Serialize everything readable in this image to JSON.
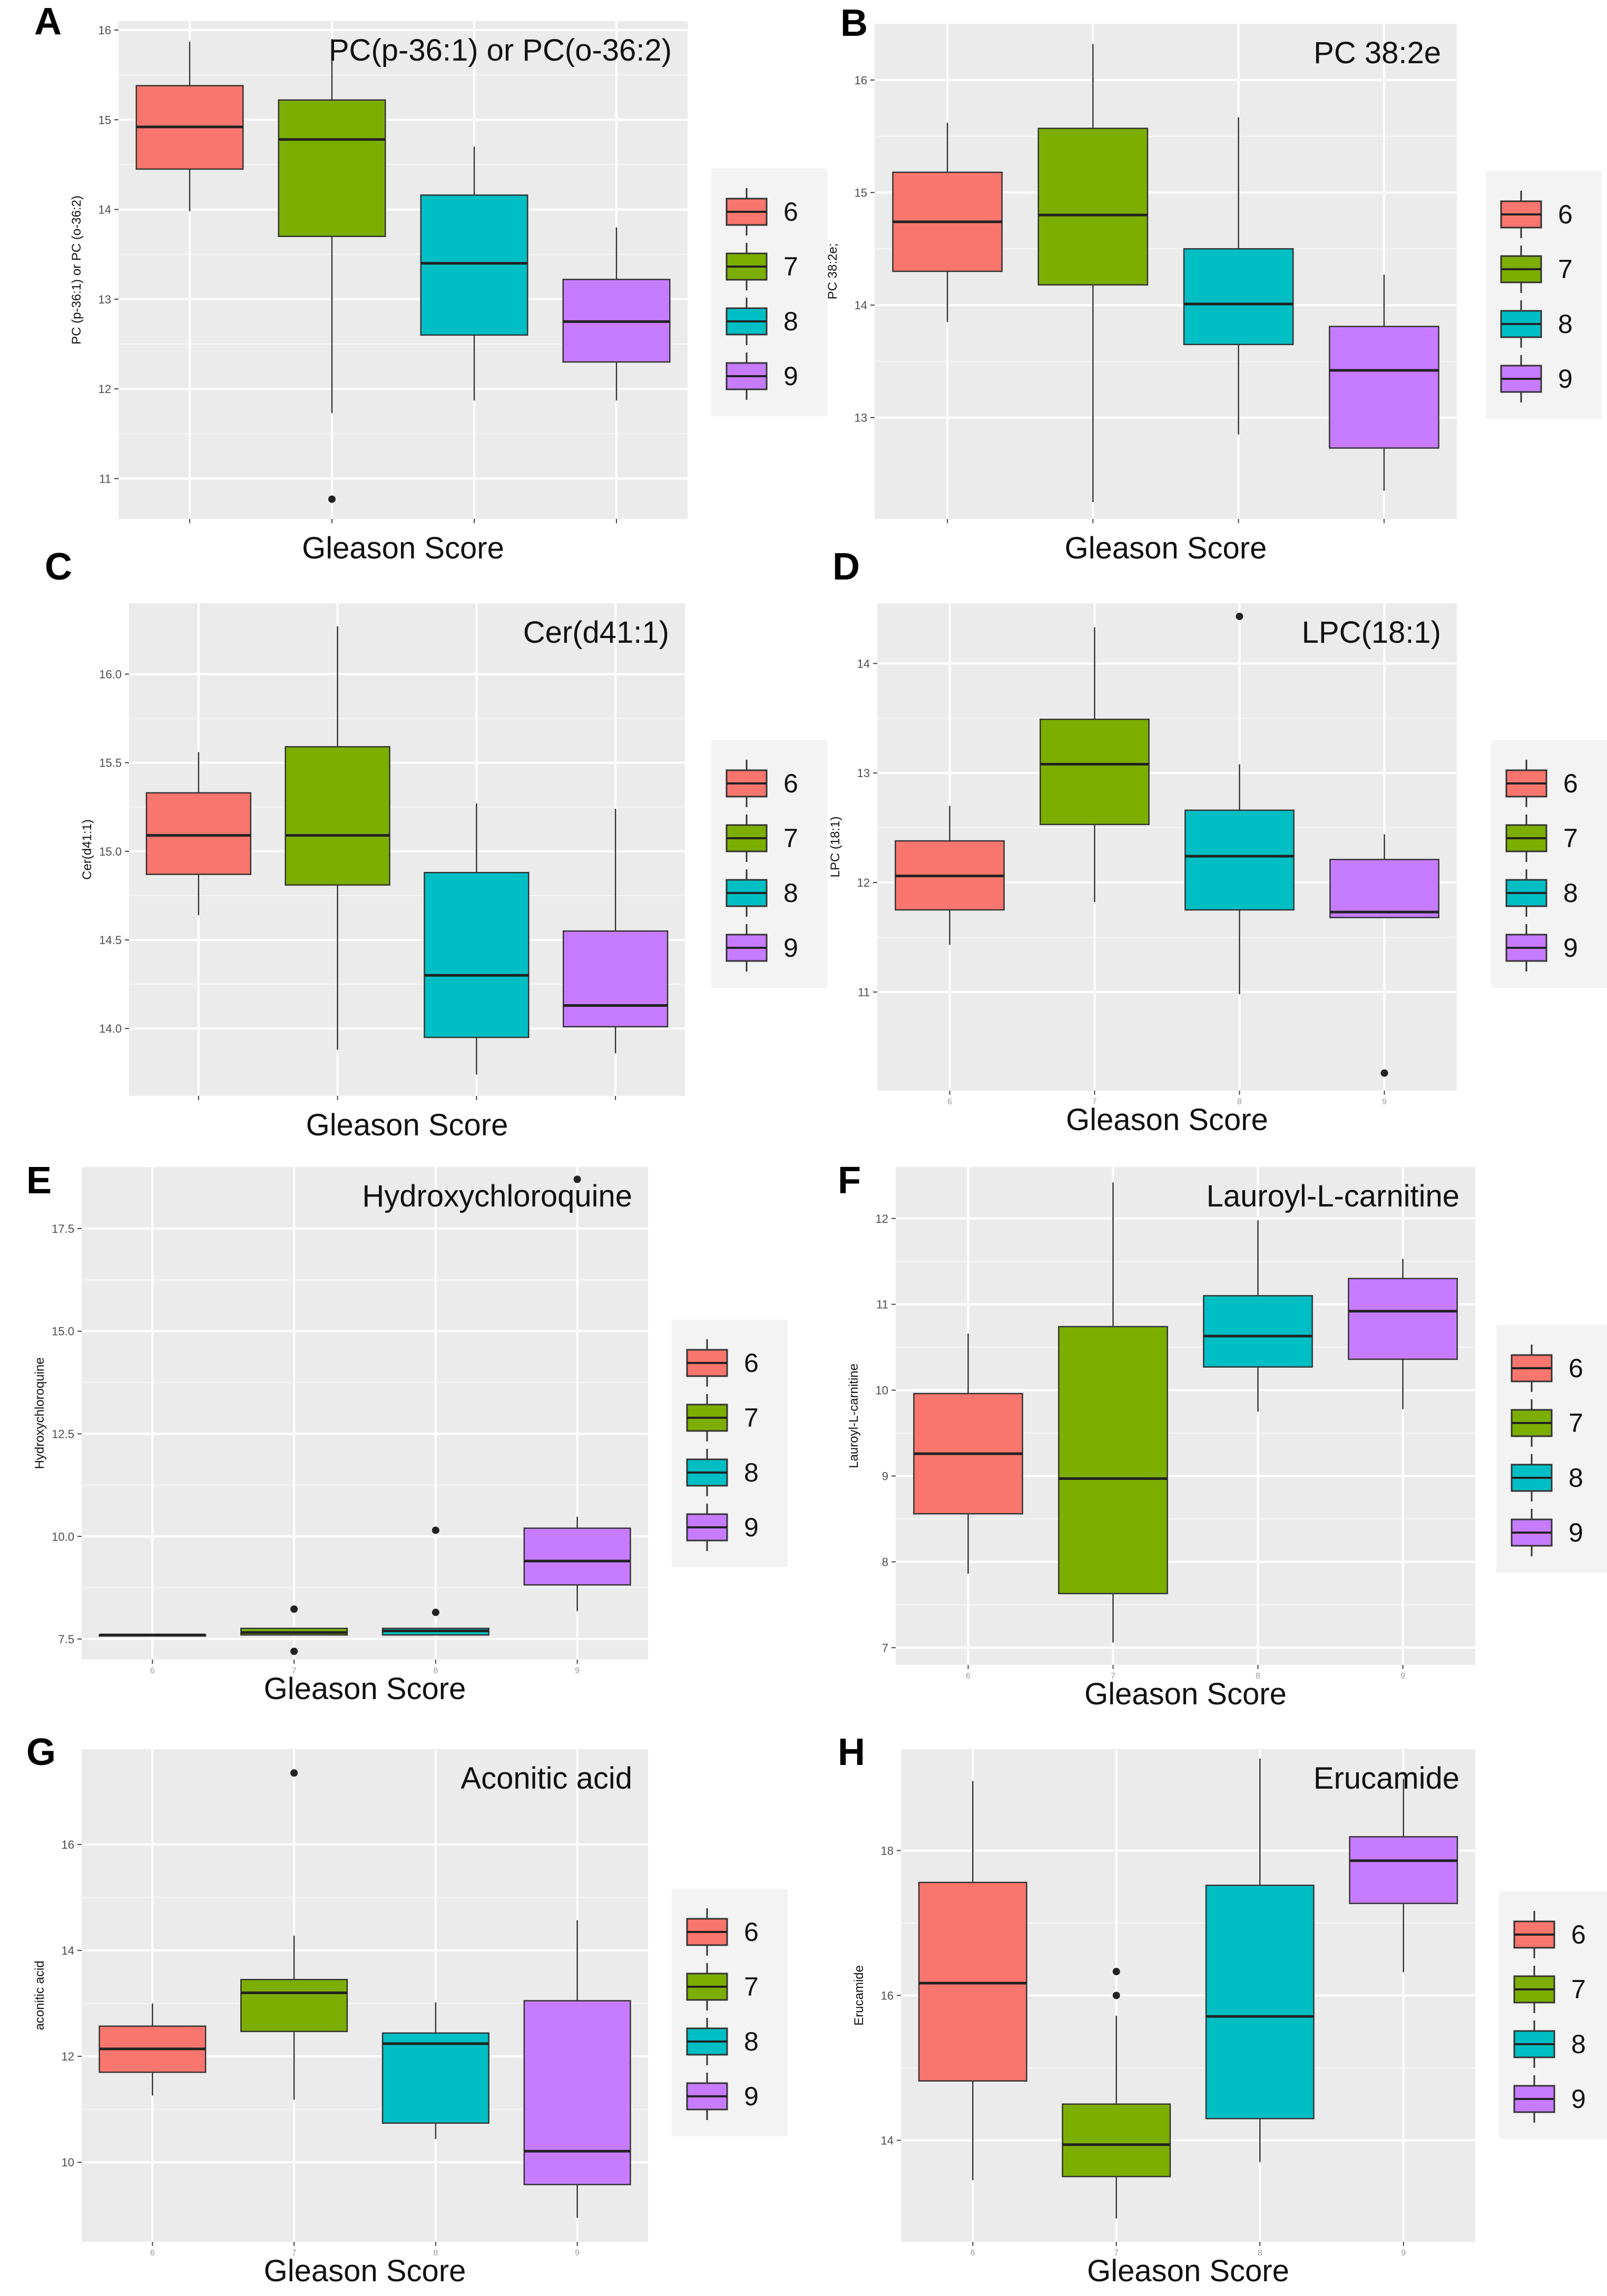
{
  "x_axis_label": "Gleason Score",
  "legend": {
    "labels": [
      "6",
      "7",
      "8",
      "9"
    ],
    "colors": [
      "#f8766d",
      "#7cae00",
      "#00bfc4",
      "#c77cff"
    ]
  },
  "chart_data": [
    {
      "letter": "A",
      "type": "boxplot",
      "title": "PC(p-36:1) or PC(o-36:2)",
      "ylabel": "PC (p-36:1) or PC (o-36:2)",
      "xlabel": "Gleason Score",
      "show_x_ticks": false,
      "ylim": [
        10.55,
        16.1
      ],
      "yticks": [
        {
          "v": 11,
          "label": "11"
        },
        {
          "v": 12,
          "label": "12"
        },
        {
          "v": 13,
          "label": "13"
        },
        {
          "v": 14,
          "label": "14"
        },
        {
          "v": 15,
          "label": "15"
        },
        {
          "v": 16,
          "label": "16"
        }
      ],
      "categories": [
        "6",
        "7",
        "8",
        "9"
      ],
      "boxes": [
        {
          "category": "6",
          "whisker_low": 13.98,
          "q1": 14.45,
          "median": 14.92,
          "q3": 15.38,
          "whisker_high": 15.87,
          "outliers": []
        },
        {
          "category": "7",
          "whisker_low": 11.73,
          "q1": 13.7,
          "median": 14.78,
          "q3": 15.22,
          "whisker_high": 15.9,
          "outliers": [
            10.77
          ]
        },
        {
          "category": "8",
          "whisker_low": 11.87,
          "q1": 12.6,
          "median": 13.4,
          "q3": 14.16,
          "whisker_high": 14.7,
          "outliers": []
        },
        {
          "category": "9",
          "whisker_low": 11.87,
          "q1": 12.3,
          "median": 12.75,
          "q3": 13.22,
          "whisker_high": 13.8,
          "outliers": []
        }
      ]
    },
    {
      "letter": "B",
      "type": "boxplot",
      "title": "PC 38:2e",
      "ylabel": "PC 38:2e;",
      "xlabel": "Gleason Score",
      "show_x_ticks": false,
      "ylim": [
        12.1,
        16.5
      ],
      "yticks": [
        {
          "v": 13,
          "label": "13"
        },
        {
          "v": 14,
          "label": "14"
        },
        {
          "v": 15,
          "label": "15"
        },
        {
          "v": 16,
          "label": "16"
        }
      ],
      "categories": [
        "6",
        "7",
        "8",
        "9"
      ],
      "boxes": [
        {
          "category": "6",
          "whisker_low": 13.85,
          "q1": 14.3,
          "median": 14.74,
          "q3": 15.18,
          "whisker_high": 15.62,
          "outliers": []
        },
        {
          "category": "7",
          "whisker_low": 12.25,
          "q1": 14.18,
          "median": 14.8,
          "q3": 15.57,
          "whisker_high": 16.32,
          "outliers": []
        },
        {
          "category": "8",
          "whisker_low": 12.85,
          "q1": 13.65,
          "median": 14.01,
          "q3": 14.5,
          "whisker_high": 15.67,
          "outliers": []
        },
        {
          "category": "9",
          "whisker_low": 12.35,
          "q1": 12.73,
          "median": 13.42,
          "q3": 13.81,
          "whisker_high": 14.27,
          "outliers": []
        }
      ]
    },
    {
      "letter": "C",
      "type": "boxplot",
      "title": "Cer(d41:1)",
      "ylabel": "Cer(d41:1)",
      "xlabel": "Gleason Score",
      "show_x_ticks": false,
      "ylim": [
        13.62,
        16.4
      ],
      "yticks": [
        {
          "v": 14.0,
          "label": "14.0"
        },
        {
          "v": 14.5,
          "label": "14.5"
        },
        {
          "v": 15.0,
          "label": "15.0"
        },
        {
          "v": 15.5,
          "label": "15.5"
        },
        {
          "v": 16.0,
          "label": "16.0"
        }
      ],
      "categories": [
        "6",
        "7",
        "8",
        "9"
      ],
      "boxes": [
        {
          "category": "6",
          "whisker_low": 14.64,
          "q1": 14.87,
          "median": 15.09,
          "q3": 15.33,
          "whisker_high": 15.56,
          "outliers": []
        },
        {
          "category": "7",
          "whisker_low": 13.88,
          "q1": 14.81,
          "median": 15.09,
          "q3": 15.59,
          "whisker_high": 16.27,
          "outliers": []
        },
        {
          "category": "8",
          "whisker_low": 13.74,
          "q1": 13.95,
          "median": 14.3,
          "q3": 14.88,
          "whisker_high": 15.27,
          "outliers": []
        },
        {
          "category": "9",
          "whisker_low": 13.86,
          "q1": 14.01,
          "median": 14.13,
          "q3": 14.55,
          "whisker_high": 15.24,
          "outliers": []
        }
      ]
    },
    {
      "letter": "D",
      "type": "boxplot",
      "title": "LPC(18:1)",
      "ylabel": "LPC (18:1)",
      "xlabel": "Gleason Score",
      "show_x_ticks": true,
      "ylim": [
        10.1,
        14.55
      ],
      "yticks": [
        {
          "v": 11,
          "label": "11"
        },
        {
          "v": 12,
          "label": "12"
        },
        {
          "v": 13,
          "label": "13"
        },
        {
          "v": 14,
          "label": "14"
        }
      ],
      "categories": [
        "6",
        "7",
        "8",
        "9"
      ],
      "boxes": [
        {
          "category": "6",
          "whisker_low": 11.43,
          "q1": 11.75,
          "median": 12.06,
          "q3": 12.38,
          "whisker_high": 12.7,
          "outliers": []
        },
        {
          "category": "7",
          "whisker_low": 11.82,
          "q1": 12.53,
          "median": 13.08,
          "q3": 13.49,
          "whisker_high": 14.33,
          "outliers": []
        },
        {
          "category": "8",
          "whisker_low": 10.98,
          "q1": 11.75,
          "median": 12.24,
          "q3": 12.66,
          "whisker_high": 13.08,
          "outliers": [
            14.43
          ]
        },
        {
          "category": "9",
          "whisker_low": 11.68,
          "q1": 11.68,
          "median": 11.73,
          "q3": 12.21,
          "whisker_high": 12.44,
          "outliers": [
            10.26
          ]
        }
      ]
    },
    {
      "letter": "E",
      "type": "boxplot",
      "title": "Hydroxychloroquine",
      "ylabel": "Hydroxychloroquine",
      "xlabel": "Gleason Score",
      "show_x_ticks": true,
      "ylim": [
        7.0,
        19.0
      ],
      "yticks": [
        {
          "v": 7.5,
          "label": "7.5"
        },
        {
          "v": 10.0,
          "label": "10.0"
        },
        {
          "v": 12.5,
          "label": "12.5"
        },
        {
          "v": 15.0,
          "label": "15.0"
        },
        {
          "v": 17.5,
          "label": "17.5"
        }
      ],
      "categories": [
        "6",
        "7",
        "8",
        "9"
      ],
      "boxes": [
        {
          "category": "6",
          "whisker_low": 7.6,
          "q1": 7.6,
          "median": 7.6,
          "q3": 7.6,
          "whisker_high": 7.6,
          "outliers": []
        },
        {
          "category": "7",
          "whisker_low": 7.6,
          "q1": 7.6,
          "median": 7.66,
          "q3": 7.76,
          "whisker_high": 7.76,
          "outliers": [
            8.23,
            7.2
          ]
        },
        {
          "category": "8",
          "whisker_low": 7.6,
          "q1": 7.6,
          "median": 7.7,
          "q3": 7.76,
          "whisker_high": 7.76,
          "outliers": [
            10.15,
            8.15
          ]
        },
        {
          "category": "9",
          "whisker_low": 8.18,
          "q1": 8.82,
          "median": 9.4,
          "q3": 10.2,
          "whisker_high": 10.48,
          "outliers": [
            18.7
          ]
        }
      ]
    },
    {
      "letter": "F",
      "type": "boxplot",
      "title": "Lauroyl-L-carnitine",
      "ylabel": "Lauroyl-L-carnitine",
      "xlabel": "Gleason Score",
      "show_x_ticks": true,
      "ylim": [
        6.8,
        12.6
      ],
      "yticks": [
        {
          "v": 7,
          "label": "7"
        },
        {
          "v": 8,
          "label": "8"
        },
        {
          "v": 9,
          "label": "9"
        },
        {
          "v": 10,
          "label": "10"
        },
        {
          "v": 11,
          "label": "11"
        },
        {
          "v": 12,
          "label": "12"
        }
      ],
      "categories": [
        "6",
        "7",
        "8",
        "9"
      ],
      "boxes": [
        {
          "category": "6",
          "whisker_low": 7.86,
          "q1": 8.56,
          "median": 9.26,
          "q3": 9.96,
          "whisker_high": 10.66,
          "outliers": []
        },
        {
          "category": "7",
          "whisker_low": 7.06,
          "q1": 7.63,
          "median": 8.97,
          "q3": 10.74,
          "whisker_high": 12.42,
          "outliers": []
        },
        {
          "category": "8",
          "whisker_low": 9.75,
          "q1": 10.27,
          "median": 10.63,
          "q3": 11.1,
          "whisker_high": 11.98,
          "outliers": []
        },
        {
          "category": "9",
          "whisker_low": 9.78,
          "q1": 10.36,
          "median": 10.92,
          "q3": 11.3,
          "whisker_high": 11.53,
          "outliers": []
        }
      ]
    },
    {
      "letter": "G",
      "type": "boxplot",
      "title": "Aconitic acid",
      "ylabel": "aconitic acid",
      "xlabel": "Gleason Score",
      "show_x_ticks": true,
      "ylim": [
        8.5,
        17.8
      ],
      "yticks": [
        {
          "v": 10,
          "label": "10"
        },
        {
          "v": 12,
          "label": "12"
        },
        {
          "v": 14,
          "label": "14"
        },
        {
          "v": 16,
          "label": "16"
        }
      ],
      "categories": [
        "6",
        "7",
        "8",
        "9"
      ],
      "boxes": [
        {
          "category": "6",
          "whisker_low": 11.26,
          "q1": 11.7,
          "median": 12.14,
          "q3": 12.57,
          "whisker_high": 13.0,
          "outliers": []
        },
        {
          "category": "7",
          "whisker_low": 11.18,
          "q1": 12.47,
          "median": 13.2,
          "q3": 13.45,
          "whisker_high": 14.28,
          "outliers": [
            17.35
          ]
        },
        {
          "category": "8",
          "whisker_low": 10.44,
          "q1": 10.74,
          "median": 12.24,
          "q3": 12.44,
          "whisker_high": 13.02,
          "outliers": []
        },
        {
          "category": "9",
          "whisker_low": 8.95,
          "q1": 9.58,
          "median": 10.21,
          "q3": 13.05,
          "whisker_high": 14.57,
          "outliers": []
        }
      ]
    },
    {
      "letter": "H",
      "type": "boxplot",
      "title": "Erucamide",
      "ylabel": "Erucamide",
      "xlabel": "Gleason Score",
      "show_x_ticks": true,
      "ylim": [
        12.6,
        19.4
      ],
      "yticks": [
        {
          "v": 14,
          "label": "14"
        },
        {
          "v": 16,
          "label": "16"
        },
        {
          "v": 18,
          "label": "18"
        }
      ],
      "categories": [
        "6",
        "7",
        "8",
        "9"
      ],
      "boxes": [
        {
          "category": "6",
          "whisker_low": 13.45,
          "q1": 14.82,
          "median": 16.17,
          "q3": 17.56,
          "whisker_high": 18.96,
          "outliers": []
        },
        {
          "category": "7",
          "whisker_low": 12.92,
          "q1": 13.5,
          "median": 13.94,
          "q3": 14.5,
          "whisker_high": 15.72,
          "outliers": [
            16.33,
            16.0
          ]
        },
        {
          "category": "8",
          "whisker_low": 13.7,
          "q1": 14.3,
          "median": 15.71,
          "q3": 17.52,
          "whisker_high": 19.27,
          "outliers": []
        },
        {
          "category": "9",
          "whisker_low": 16.32,
          "q1": 17.27,
          "median": 17.86,
          "q3": 18.19,
          "whisker_high": 18.99,
          "outliers": []
        }
      ]
    }
  ]
}
